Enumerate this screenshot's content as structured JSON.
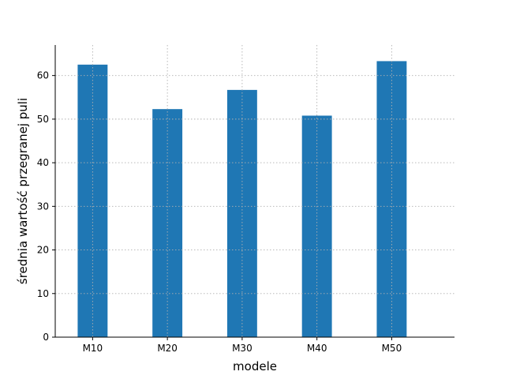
{
  "chart_data": {
    "type": "bar",
    "categories": [
      "M10",
      "M20",
      "M30",
      "M40",
      "M50"
    ],
    "values": [
      62.5,
      52.3,
      56.7,
      50.8,
      63.3
    ],
    "title": "",
    "xlabel": "modele",
    "ylabel": "średnia wartość przegranej puli",
    "ylim": [
      0,
      67
    ],
    "yticks": [
      0,
      10,
      20,
      30,
      40,
      50,
      60
    ],
    "grid": true,
    "bar_color": "#1f77b4"
  }
}
